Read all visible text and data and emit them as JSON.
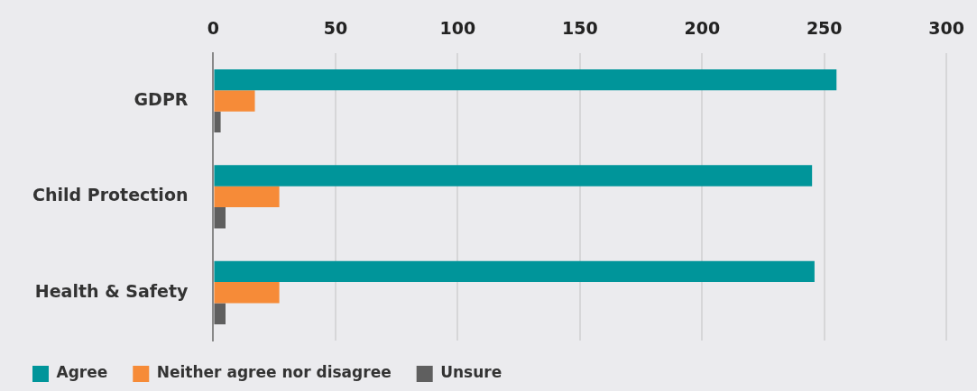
{
  "chart_data": {
    "type": "bar",
    "orientation": "horizontal",
    "categories": [
      "GDPR",
      "Child Protection",
      "Health & Safety"
    ],
    "series": [
      {
        "name": "Agree",
        "color": "#00959a",
        "values": [
          255,
          245,
          246
        ]
      },
      {
        "name": "Neither agree nor disagree",
        "color": "#f68b38",
        "values": [
          17,
          27,
          27
        ]
      },
      {
        "name": "Unsure",
        "color": "#5f5f5f",
        "values": [
          3,
          5,
          5
        ]
      }
    ],
    "xlim": [
      0,
      300
    ],
    "xticks": [
      0,
      50,
      100,
      150,
      200,
      250,
      300
    ],
    "grid": "x",
    "legend": "bottom left"
  }
}
